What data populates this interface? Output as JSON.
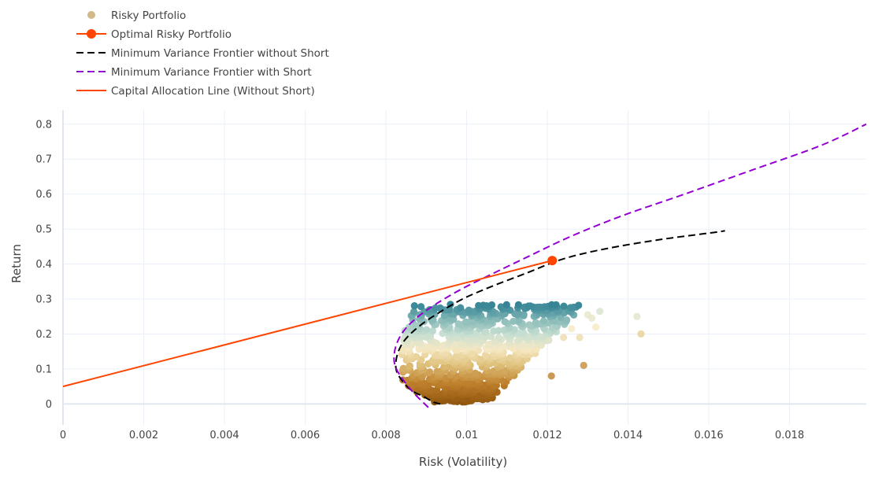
{
  "chart_data": {
    "type": "scatter",
    "xlabel": "Risk (Volatility)",
    "ylabel": "Return",
    "xlim": [
      0,
      0.0199
    ],
    "ylim": [
      -0.06,
      0.84
    ],
    "x_ticks": [
      "0",
      "0.002",
      "0.004",
      "0.006",
      "0.008",
      "0.01",
      "0.012",
      "0.014",
      "0.016",
      "0.018"
    ],
    "x_tick_values": [
      0,
      0.002,
      0.004,
      0.006,
      0.008,
      0.01,
      0.012,
      0.014,
      0.016,
      0.018
    ],
    "y_ticks": [
      "0",
      "0.1",
      "0.2",
      "0.3",
      "0.4",
      "0.5",
      "0.6",
      "0.7",
      "0.8"
    ],
    "y_tick_values": [
      0,
      0.1,
      0.2,
      0.3,
      0.4,
      0.5,
      0.6,
      0.7,
      0.8
    ],
    "grid": true,
    "legend_position": "top-left",
    "legend": [
      {
        "label": "Risky Portfolio",
        "kind": "marker",
        "color": "#d2b98a"
      },
      {
        "label": "Optimal Risky Portfolio",
        "kind": "line-marker",
        "color": "#ff4500"
      },
      {
        "label": "Minimum Variance Frontier without Short",
        "kind": "dash",
        "color": "#000000"
      },
      {
        "label": "Minimum Variance Frontier with Short",
        "kind": "dash",
        "color": "#9400d3"
      },
      {
        "label": "Capital Allocation Line (Without Short)",
        "kind": "line",
        "color": "#ff4500"
      }
    ],
    "series": [
      {
        "name": "Risky Portfolio",
        "type": "scatter",
        "note_colorscale": [
          "#8c510a",
          "#d8b365",
          "#f6e8c3",
          "#c7eae5",
          "#5ab4ac",
          "#01665e"
        ],
        "cloud": {
          "count": 900
        },
        "outliers": [
          {
            "x": 0.01422,
            "y": 0.25,
            "c": 0.62
          },
          {
            "x": 0.01432,
            "y": 0.2,
            "c": 0.45
          },
          {
            "x": 0.0133,
            "y": 0.265,
            "c": 0.65
          },
          {
            "x": 0.013,
            "y": 0.255,
            "c": 0.6
          },
          {
            "x": 0.0129,
            "y": 0.11,
            "c": 0.25
          },
          {
            "x": 0.0121,
            "y": 0.08,
            "c": 0.22
          },
          {
            "x": 0.0132,
            "y": 0.22,
            "c": 0.55
          },
          {
            "x": 0.0131,
            "y": 0.245,
            "c": 0.6
          },
          {
            "x": 0.0128,
            "y": 0.19,
            "c": 0.5
          },
          {
            "x": 0.0126,
            "y": 0.215,
            "c": 0.55
          },
          {
            "x": 0.0124,
            "y": 0.19,
            "c": 0.5
          }
        ]
      },
      {
        "name": "Optimal Risky Portfolio",
        "type": "marker",
        "x": 0.01212,
        "y": 0.41,
        "color": "#ff4500"
      },
      {
        "name": "Minimum Variance Frontier without Short",
        "type": "line",
        "dash": true,
        "color": "#000000",
        "x": [
          0.00935,
          0.00918,
          0.00895,
          0.00862,
          0.00838,
          0.00825,
          0.00828,
          0.00845,
          0.0088,
          0.0093,
          0.0099,
          0.0106,
          0.0115,
          0.0124,
          0.0135,
          0.0148,
          0.0161,
          0.0164
        ],
        "y": [
          0.0,
          0.005,
          0.02,
          0.04,
          0.07,
          0.1,
          0.14,
          0.18,
          0.22,
          0.26,
          0.3,
          0.335,
          0.375,
          0.415,
          0.445,
          0.47,
          0.49,
          0.495
        ]
      },
      {
        "name": "Minimum Variance Frontier with Short",
        "type": "line",
        "dash": true,
        "color": "#9400d3",
        "x": [
          0.00905,
          0.0087,
          0.00842,
          0.00826,
          0.0082,
          0.00826,
          0.00845,
          0.0088,
          0.0093,
          0.0099,
          0.0106,
          0.0115,
          0.0126,
          0.0139,
          0.0154,
          0.0171,
          0.0188,
          0.0199
        ],
        "y": [
          -0.01,
          0.03,
          0.07,
          0.1,
          0.13,
          0.17,
          0.21,
          0.25,
          0.29,
          0.33,
          0.37,
          0.42,
          0.48,
          0.54,
          0.6,
          0.67,
          0.74,
          0.8
        ]
      },
      {
        "name": "Capital Allocation Line (Without Short)",
        "type": "line",
        "dash": false,
        "color": "#ff4500",
        "x": [
          0,
          0.01212
        ],
        "y": [
          0.05,
          0.41
        ]
      }
    ]
  }
}
